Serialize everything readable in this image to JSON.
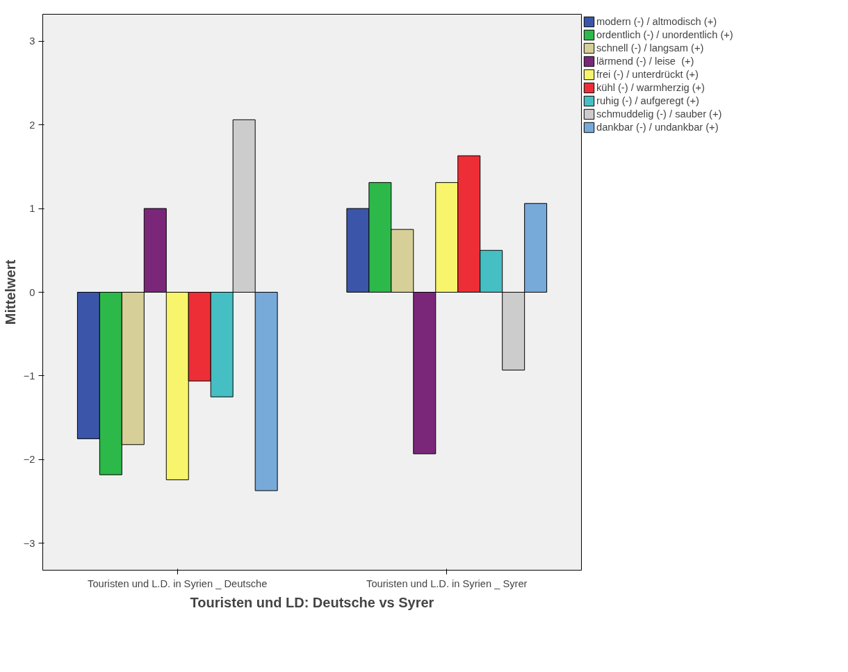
{
  "chart_data": {
    "type": "bar",
    "xlabel": "Touristen und LD: Deutsche vs Syrer",
    "ylabel": "Mittelwert",
    "categories": [
      "Touristen und L.D. in Syrien _ Deutsche",
      "Touristen und L.D. in Syrien _ Syrer"
    ],
    "series": [
      {
        "name": "modern (-) / altmodisch (+)",
        "color": "#3b55a8",
        "values": [
          -1.75,
          1.0
        ]
      },
      {
        "name": "ordentlich (-) / unordentlich (+)",
        "color": "#2db84a",
        "values": [
          -2.18,
          1.31
        ]
      },
      {
        "name": "schnell (-) / langsam (+)",
        "color": "#d6cf97",
        "values": [
          -1.82,
          0.75
        ]
      },
      {
        "name": "lärmend (-) / leise  (+)",
        "color": "#7b2779",
        "values": [
          1.0,
          -1.93
        ]
      },
      {
        "name": "frei (-) / unterdrückt (+)",
        "color": "#f8f56c",
        "values": [
          -2.24,
          1.31
        ]
      },
      {
        "name": "kühl (-) / warmherzig (+)",
        "color": "#ee2e36",
        "values": [
          -1.06,
          1.63
        ]
      },
      {
        "name": "ruhig (-) / aufgeregt (+)",
        "color": "#45bfc4",
        "values": [
          -1.25,
          0.5
        ]
      },
      {
        "name": "schmuddelig (-) / sauber (+)",
        "color": "#cccccc",
        "values": [
          2.06,
          -0.93
        ]
      },
      {
        "name": "dankbar (-) / undankbar (+)",
        "color": "#77a9d9",
        "values": [
          -2.37,
          1.06
        ]
      }
    ],
    "ylim": [
      -3.32,
      3.32
    ],
    "yticks": [
      -3,
      -2,
      -1,
      0,
      1,
      2,
      3
    ],
    "grid": false,
    "legend": "top right"
  }
}
